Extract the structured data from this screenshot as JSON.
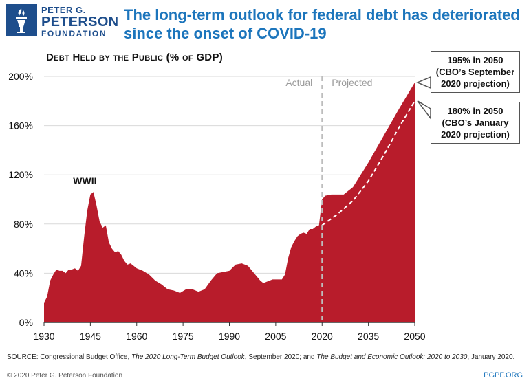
{
  "brand": {
    "line1": "PETER G.",
    "line2": "PETERSON",
    "line3": "FOUNDATION",
    "colors": {
      "blue": "#1e4e8c",
      "accent": "#1c75bc",
      "area": "#b81c2b"
    }
  },
  "headline": "The long-term outlook for federal debt has deteriorated since the onset of COVID-19",
  "chart_data": {
    "type": "area",
    "title": "Debt Held by the Public (% of GDP)",
    "xlabel": "",
    "ylabel": "Debt Held by the Public (% of GDP)",
    "xlim": [
      1930,
      2050
    ],
    "ylim": [
      0,
      200
    ],
    "x_ticks": [
      "1930",
      "1945",
      "1960",
      "1975",
      "1990",
      "2005",
      "2020",
      "2035",
      "2050"
    ],
    "y_ticks": [
      "0%",
      "40%",
      "80%",
      "120%",
      "160%",
      "200%"
    ],
    "grid": true,
    "divider": {
      "x": 2020,
      "left_label": "Actual",
      "right_label": "Projected"
    },
    "series": [
      {
        "name": "CBO's September 2020 projection",
        "style": "filled-area",
        "x": [
          1930,
          1931,
          1932,
          1933,
          1934,
          1935,
          1936,
          1937,
          1938,
          1939,
          1940,
          1941,
          1942,
          1943,
          1944,
          1945,
          1946,
          1947,
          1948,
          1949,
          1950,
          1951,
          1952,
          1953,
          1954,
          1955,
          1956,
          1957,
          1958,
          1959,
          1960,
          1962,
          1964,
          1966,
          1968,
          1970,
          1972,
          1974,
          1976,
          1978,
          1980,
          1982,
          1984,
          1986,
          1988,
          1990,
          1992,
          1994,
          1996,
          1998,
          2000,
          2001,
          2002,
          2004,
          2006,
          2007,
          2008,
          2009,
          2010,
          2011,
          2012,
          2013,
          2014,
          2015,
          2016,
          2017,
          2018,
          2019,
          2020,
          2021,
          2023,
          2025,
          2027,
          2030,
          2035,
          2040,
          2045,
          2050
        ],
        "values": [
          16,
          21,
          34,
          39,
          43,
          42,
          42,
          40,
          43,
          43,
          44,
          42,
          46,
          70,
          91,
          104,
          106,
          95,
          82,
          77,
          79,
          65,
          60,
          57,
          58,
          55,
          50,
          47,
          48,
          46,
          44,
          42,
          39,
          34,
          31,
          27,
          26,
          24,
          27,
          27,
          25,
          27,
          34,
          40,
          41,
          42,
          47,
          48,
          46,
          40,
          34,
          32,
          33,
          35,
          35,
          35,
          39,
          52,
          61,
          66,
          70,
          72,
          73,
          72,
          76,
          76,
          78,
          79,
          100,
          103,
          104,
          104,
          104,
          110,
          130,
          152,
          174,
          195
        ]
      },
      {
        "name": "CBO's January 2020 projection",
        "style": "dashed",
        "x": [
          2020,
          2025,
          2030,
          2035,
          2040,
          2045,
          2050
        ],
        "values": [
          79,
          88,
          99,
          115,
          136,
          159,
          180
        ]
      }
    ],
    "annotations": [
      {
        "label": "WWII",
        "x": 1945,
        "y": 110
      }
    ],
    "callouts": [
      {
        "line1": "195% in 2050",
        "line2": "(CBO’s September",
        "line3": "2020 projection)",
        "value": 195,
        "x": 2050
      },
      {
        "line1": "180% in 2050",
        "line2": "(CBO’s January",
        "line3": "2020 projection)",
        "value": 180,
        "x": 2050
      }
    ]
  },
  "source": {
    "label": "SOURCE:",
    "text_a": "Congressional Budget Office,",
    "title_a": "The 2020 Long-Term Budget Outlook",
    "text_b": ", September 2020; and",
    "title_b": "The Budget and Economic Outlook: 2020 to 2030",
    "text_c": ", January 2020."
  },
  "footer": {
    "copyright": "© 2020 Peter G. Peterson Foundation",
    "site": "PGPF.ORG"
  }
}
